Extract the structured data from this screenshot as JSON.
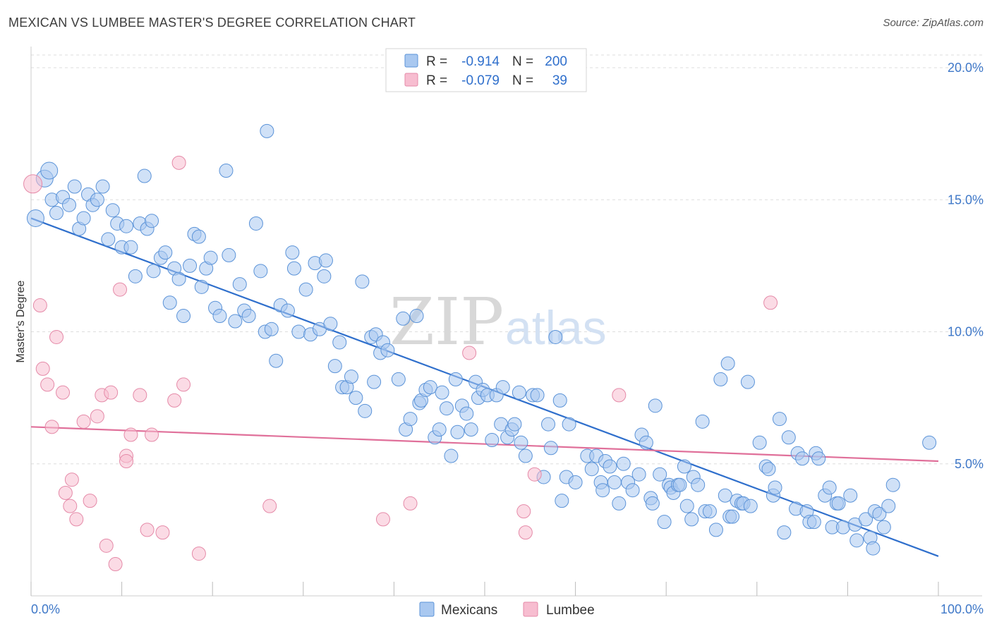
{
  "header": {
    "title": "MEXICAN VS LUMBEE MASTER'S DEGREE CORRELATION CHART",
    "source": "Source: ZipAtlas.com"
  },
  "legend": {
    "rows": [
      {
        "r_label": "R =",
        "r_value": "-0.914",
        "n_label": "N =",
        "n_value": "200"
      },
      {
        "r_label": "R =",
        "r_value": "-0.079",
        "n_label": "N =",
        "n_value": "39"
      }
    ]
  },
  "bottom_legend": {
    "items": [
      "Mexicans",
      "Lumbee"
    ]
  },
  "watermark": {
    "zip": "ZIP",
    "atlas": "atlas"
  },
  "colors": {
    "mexicans_fill": "#a9c8f0",
    "mexicans_stroke": "#5b93d8",
    "mexicans_line": "#2f6fcc",
    "lumbee_fill": "#f7bdd0",
    "lumbee_stroke": "#e58aa8",
    "lumbee_line": "#e0709a",
    "grid": "#dddddd",
    "tick_text": "#3f78c8"
  },
  "chart_data": {
    "type": "scatter",
    "title": "MEXICAN VS LUMBEE MASTER'S DEGREE CORRELATION CHART",
    "xlabel": "",
    "ylabel": "Master's Degree",
    "xlim": [
      0,
      100
    ],
    "ylim": [
      0,
      20.7
    ],
    "x_tick_labels": [
      "0.0%",
      "100.0%"
    ],
    "y_ticks": [
      5,
      10,
      15,
      20
    ],
    "y_tick_labels": [
      "5.0%",
      "10.0%",
      "15.0%",
      "20.0%"
    ],
    "grid": true,
    "legend_position": "top-center",
    "series": [
      {
        "name": "Mexicans",
        "r": -0.914,
        "n": 200,
        "trend": {
          "x": [
            0,
            100
          ],
          "y": [
            14.3,
            1.5
          ]
        },
        "points": [
          [
            0.5,
            14.3
          ],
          [
            1.5,
            15.8
          ],
          [
            2.0,
            16.1
          ],
          [
            2.3,
            15.0
          ],
          [
            2.8,
            14.5
          ],
          [
            3.5,
            15.1
          ],
          [
            4.2,
            14.8
          ],
          [
            4.8,
            15.5
          ],
          [
            5.3,
            13.9
          ],
          [
            5.8,
            14.3
          ],
          [
            6.3,
            15.2
          ],
          [
            6.8,
            14.8
          ],
          [
            7.3,
            15.0
          ],
          [
            7.9,
            15.5
          ],
          [
            8.5,
            13.5
          ],
          [
            9.0,
            14.6
          ],
          [
            9.5,
            14.1
          ],
          [
            10.0,
            13.2
          ],
          [
            10.5,
            14.0
          ],
          [
            11.0,
            13.2
          ],
          [
            11.5,
            12.1
          ],
          [
            12.0,
            14.1
          ],
          [
            12.5,
            15.9
          ],
          [
            12.8,
            13.9
          ],
          [
            13.3,
            14.2
          ],
          [
            13.5,
            12.3
          ],
          [
            14.3,
            12.8
          ],
          [
            14.8,
            13.0
          ],
          [
            15.3,
            11.1
          ],
          [
            15.8,
            12.4
          ],
          [
            16.3,
            12.0
          ],
          [
            16.8,
            10.6
          ],
          [
            17.5,
            12.5
          ],
          [
            18.0,
            13.7
          ],
          [
            18.5,
            13.6
          ],
          [
            18.8,
            11.7
          ],
          [
            19.3,
            12.4
          ],
          [
            19.8,
            12.8
          ],
          [
            20.3,
            10.9
          ],
          [
            20.8,
            10.6
          ],
          [
            21.5,
            16.1
          ],
          [
            21.8,
            12.9
          ],
          [
            22.5,
            10.4
          ],
          [
            23.0,
            11.8
          ],
          [
            23.5,
            10.8
          ],
          [
            24.0,
            10.6
          ],
          [
            24.8,
            14.1
          ],
          [
            25.3,
            12.3
          ],
          [
            25.8,
            10.0
          ],
          [
            26.0,
            17.6
          ],
          [
            26.5,
            10.1
          ],
          [
            27.0,
            8.9
          ],
          [
            27.5,
            11.0
          ],
          [
            28.3,
            10.8
          ],
          [
            28.8,
            13.0
          ],
          [
            29.0,
            12.4
          ],
          [
            29.5,
            10.0
          ],
          [
            30.3,
            11.6
          ],
          [
            30.8,
            9.9
          ],
          [
            31.3,
            12.6
          ],
          [
            31.8,
            10.1
          ],
          [
            32.3,
            12.1
          ],
          [
            32.5,
            12.7
          ],
          [
            33.0,
            10.3
          ],
          [
            33.5,
            8.7
          ],
          [
            34.0,
            9.6
          ],
          [
            34.3,
            7.9
          ],
          [
            34.8,
            7.9
          ],
          [
            35.3,
            8.3
          ],
          [
            35.8,
            7.5
          ],
          [
            36.5,
            11.9
          ],
          [
            36.8,
            7.0
          ],
          [
            37.5,
            9.8
          ],
          [
            37.8,
            8.1
          ],
          [
            38.0,
            9.9
          ],
          [
            38.5,
            9.2
          ],
          [
            38.8,
            9.6
          ],
          [
            39.3,
            9.3
          ],
          [
            40.5,
            8.2
          ],
          [
            41.0,
            10.5
          ],
          [
            41.3,
            6.3
          ],
          [
            41.8,
            6.7
          ],
          [
            42.5,
            10.6
          ],
          [
            42.8,
            7.3
          ],
          [
            43.0,
            7.4
          ],
          [
            43.5,
            7.8
          ],
          [
            44.0,
            7.9
          ],
          [
            44.5,
            6.0
          ],
          [
            45.0,
            6.3
          ],
          [
            45.3,
            7.7
          ],
          [
            45.8,
            7.1
          ],
          [
            46.3,
            5.3
          ],
          [
            46.8,
            8.2
          ],
          [
            47.0,
            6.2
          ],
          [
            47.5,
            7.2
          ],
          [
            48.0,
            6.9
          ],
          [
            48.5,
            6.3
          ],
          [
            49.0,
            8.1
          ],
          [
            49.3,
            7.5
          ],
          [
            49.8,
            7.8
          ],
          [
            50.3,
            7.6
          ],
          [
            50.8,
            5.9
          ],
          [
            51.3,
            7.6
          ],
          [
            51.8,
            6.5
          ],
          [
            52.0,
            7.9
          ],
          [
            52.5,
            6.0
          ],
          [
            53.0,
            6.3
          ],
          [
            53.3,
            6.5
          ],
          [
            53.8,
            7.7
          ],
          [
            54.0,
            5.8
          ],
          [
            54.5,
            5.3
          ],
          [
            55.3,
            7.6
          ],
          [
            55.8,
            7.6
          ],
          [
            56.5,
            4.5
          ],
          [
            57.0,
            6.5
          ],
          [
            57.3,
            5.6
          ],
          [
            57.8,
            9.8
          ],
          [
            58.3,
            7.4
          ],
          [
            58.5,
            3.6
          ],
          [
            59.0,
            4.5
          ],
          [
            59.3,
            6.5
          ],
          [
            60.0,
            4.3
          ],
          [
            61.3,
            5.3
          ],
          [
            61.8,
            4.8
          ],
          [
            62.3,
            5.3
          ],
          [
            62.8,
            4.3
          ],
          [
            63.0,
            4.0
          ],
          [
            63.3,
            5.1
          ],
          [
            63.8,
            4.9
          ],
          [
            64.3,
            4.3
          ],
          [
            64.8,
            3.5
          ],
          [
            65.3,
            5.0
          ],
          [
            65.8,
            4.3
          ],
          [
            66.3,
            4.0
          ],
          [
            67.0,
            4.6
          ],
          [
            67.3,
            6.1
          ],
          [
            67.8,
            5.8
          ],
          [
            68.3,
            3.7
          ],
          [
            68.5,
            3.5
          ],
          [
            68.8,
            7.2
          ],
          [
            69.3,
            4.6
          ],
          [
            69.8,
            2.8
          ],
          [
            70.3,
            4.2
          ],
          [
            70.5,
            4.1
          ],
          [
            70.8,
            3.9
          ],
          [
            71.3,
            4.2
          ],
          [
            71.5,
            4.2
          ],
          [
            72.0,
            4.9
          ],
          [
            72.3,
            3.4
          ],
          [
            72.8,
            2.9
          ],
          [
            73.0,
            4.5
          ],
          [
            73.5,
            4.2
          ],
          [
            74.0,
            6.6
          ],
          [
            74.3,
            3.2
          ],
          [
            74.8,
            3.2
          ],
          [
            75.5,
            2.5
          ],
          [
            76.0,
            8.2
          ],
          [
            76.5,
            3.8
          ],
          [
            76.8,
            8.8
          ],
          [
            77.0,
            3.0
          ],
          [
            77.3,
            3.0
          ],
          [
            77.8,
            3.6
          ],
          [
            78.3,
            3.5
          ],
          [
            78.5,
            3.5
          ],
          [
            79.0,
            8.1
          ],
          [
            79.3,
            3.4
          ],
          [
            80.3,
            5.8
          ],
          [
            81.0,
            4.9
          ],
          [
            81.3,
            4.8
          ],
          [
            81.8,
            3.8
          ],
          [
            82.0,
            4.1
          ],
          [
            82.5,
            6.7
          ],
          [
            83.0,
            2.4
          ],
          [
            83.5,
            6.0
          ],
          [
            84.3,
            3.3
          ],
          [
            84.5,
            5.4
          ],
          [
            85.0,
            5.2
          ],
          [
            85.5,
            3.2
          ],
          [
            85.8,
            2.8
          ],
          [
            86.3,
            2.8
          ],
          [
            86.5,
            5.4
          ],
          [
            86.8,
            5.2
          ],
          [
            87.5,
            3.8
          ],
          [
            88.0,
            4.1
          ],
          [
            88.3,
            2.6
          ],
          [
            88.8,
            3.5
          ],
          [
            89.0,
            3.5
          ],
          [
            89.5,
            2.6
          ],
          [
            90.3,
            3.8
          ],
          [
            90.8,
            2.7
          ],
          [
            91.0,
            2.1
          ],
          [
            92.0,
            2.9
          ],
          [
            92.5,
            2.2
          ],
          [
            92.8,
            1.8
          ],
          [
            93.0,
            3.2
          ],
          [
            93.5,
            3.1
          ],
          [
            94.0,
            2.6
          ],
          [
            94.5,
            3.4
          ],
          [
            95.0,
            4.2
          ],
          [
            99.0,
            5.8
          ]
        ]
      },
      {
        "name": "Lumbee",
        "r": -0.079,
        "n": 39,
        "trend": {
          "x": [
            0,
            100
          ],
          "y": [
            6.4,
            5.1
          ]
        },
        "points": [
          [
            0.2,
            15.6
          ],
          [
            1.0,
            11.0
          ],
          [
            1.3,
            8.6
          ],
          [
            1.8,
            8.0
          ],
          [
            2.3,
            6.4
          ],
          [
            2.8,
            9.8
          ],
          [
            3.5,
            7.7
          ],
          [
            3.8,
            3.9
          ],
          [
            4.3,
            3.4
          ],
          [
            4.5,
            4.4
          ],
          [
            5.0,
            2.9
          ],
          [
            5.8,
            6.6
          ],
          [
            6.5,
            3.6
          ],
          [
            7.3,
            6.8
          ],
          [
            7.8,
            7.6
          ],
          [
            8.3,
            1.9
          ],
          [
            8.8,
            7.7
          ],
          [
            9.3,
            1.2
          ],
          [
            9.8,
            11.6
          ],
          [
            10.5,
            5.3
          ],
          [
            10.5,
            5.1
          ],
          [
            11.0,
            6.1
          ],
          [
            12.0,
            7.6
          ],
          [
            12.8,
            2.5
          ],
          [
            13.3,
            6.1
          ],
          [
            14.5,
            2.4
          ],
          [
            15.8,
            7.4
          ],
          [
            16.3,
            16.4
          ],
          [
            16.8,
            8.0
          ],
          [
            18.5,
            1.6
          ],
          [
            26.3,
            3.4
          ],
          [
            38.8,
            2.9
          ],
          [
            41.8,
            3.5
          ],
          [
            48.3,
            9.2
          ],
          [
            54.3,
            3.2
          ],
          [
            54.5,
            2.4
          ],
          [
            55.5,
            4.6
          ],
          [
            64.8,
            7.6
          ],
          [
            81.5,
            11.1
          ]
        ]
      }
    ]
  }
}
